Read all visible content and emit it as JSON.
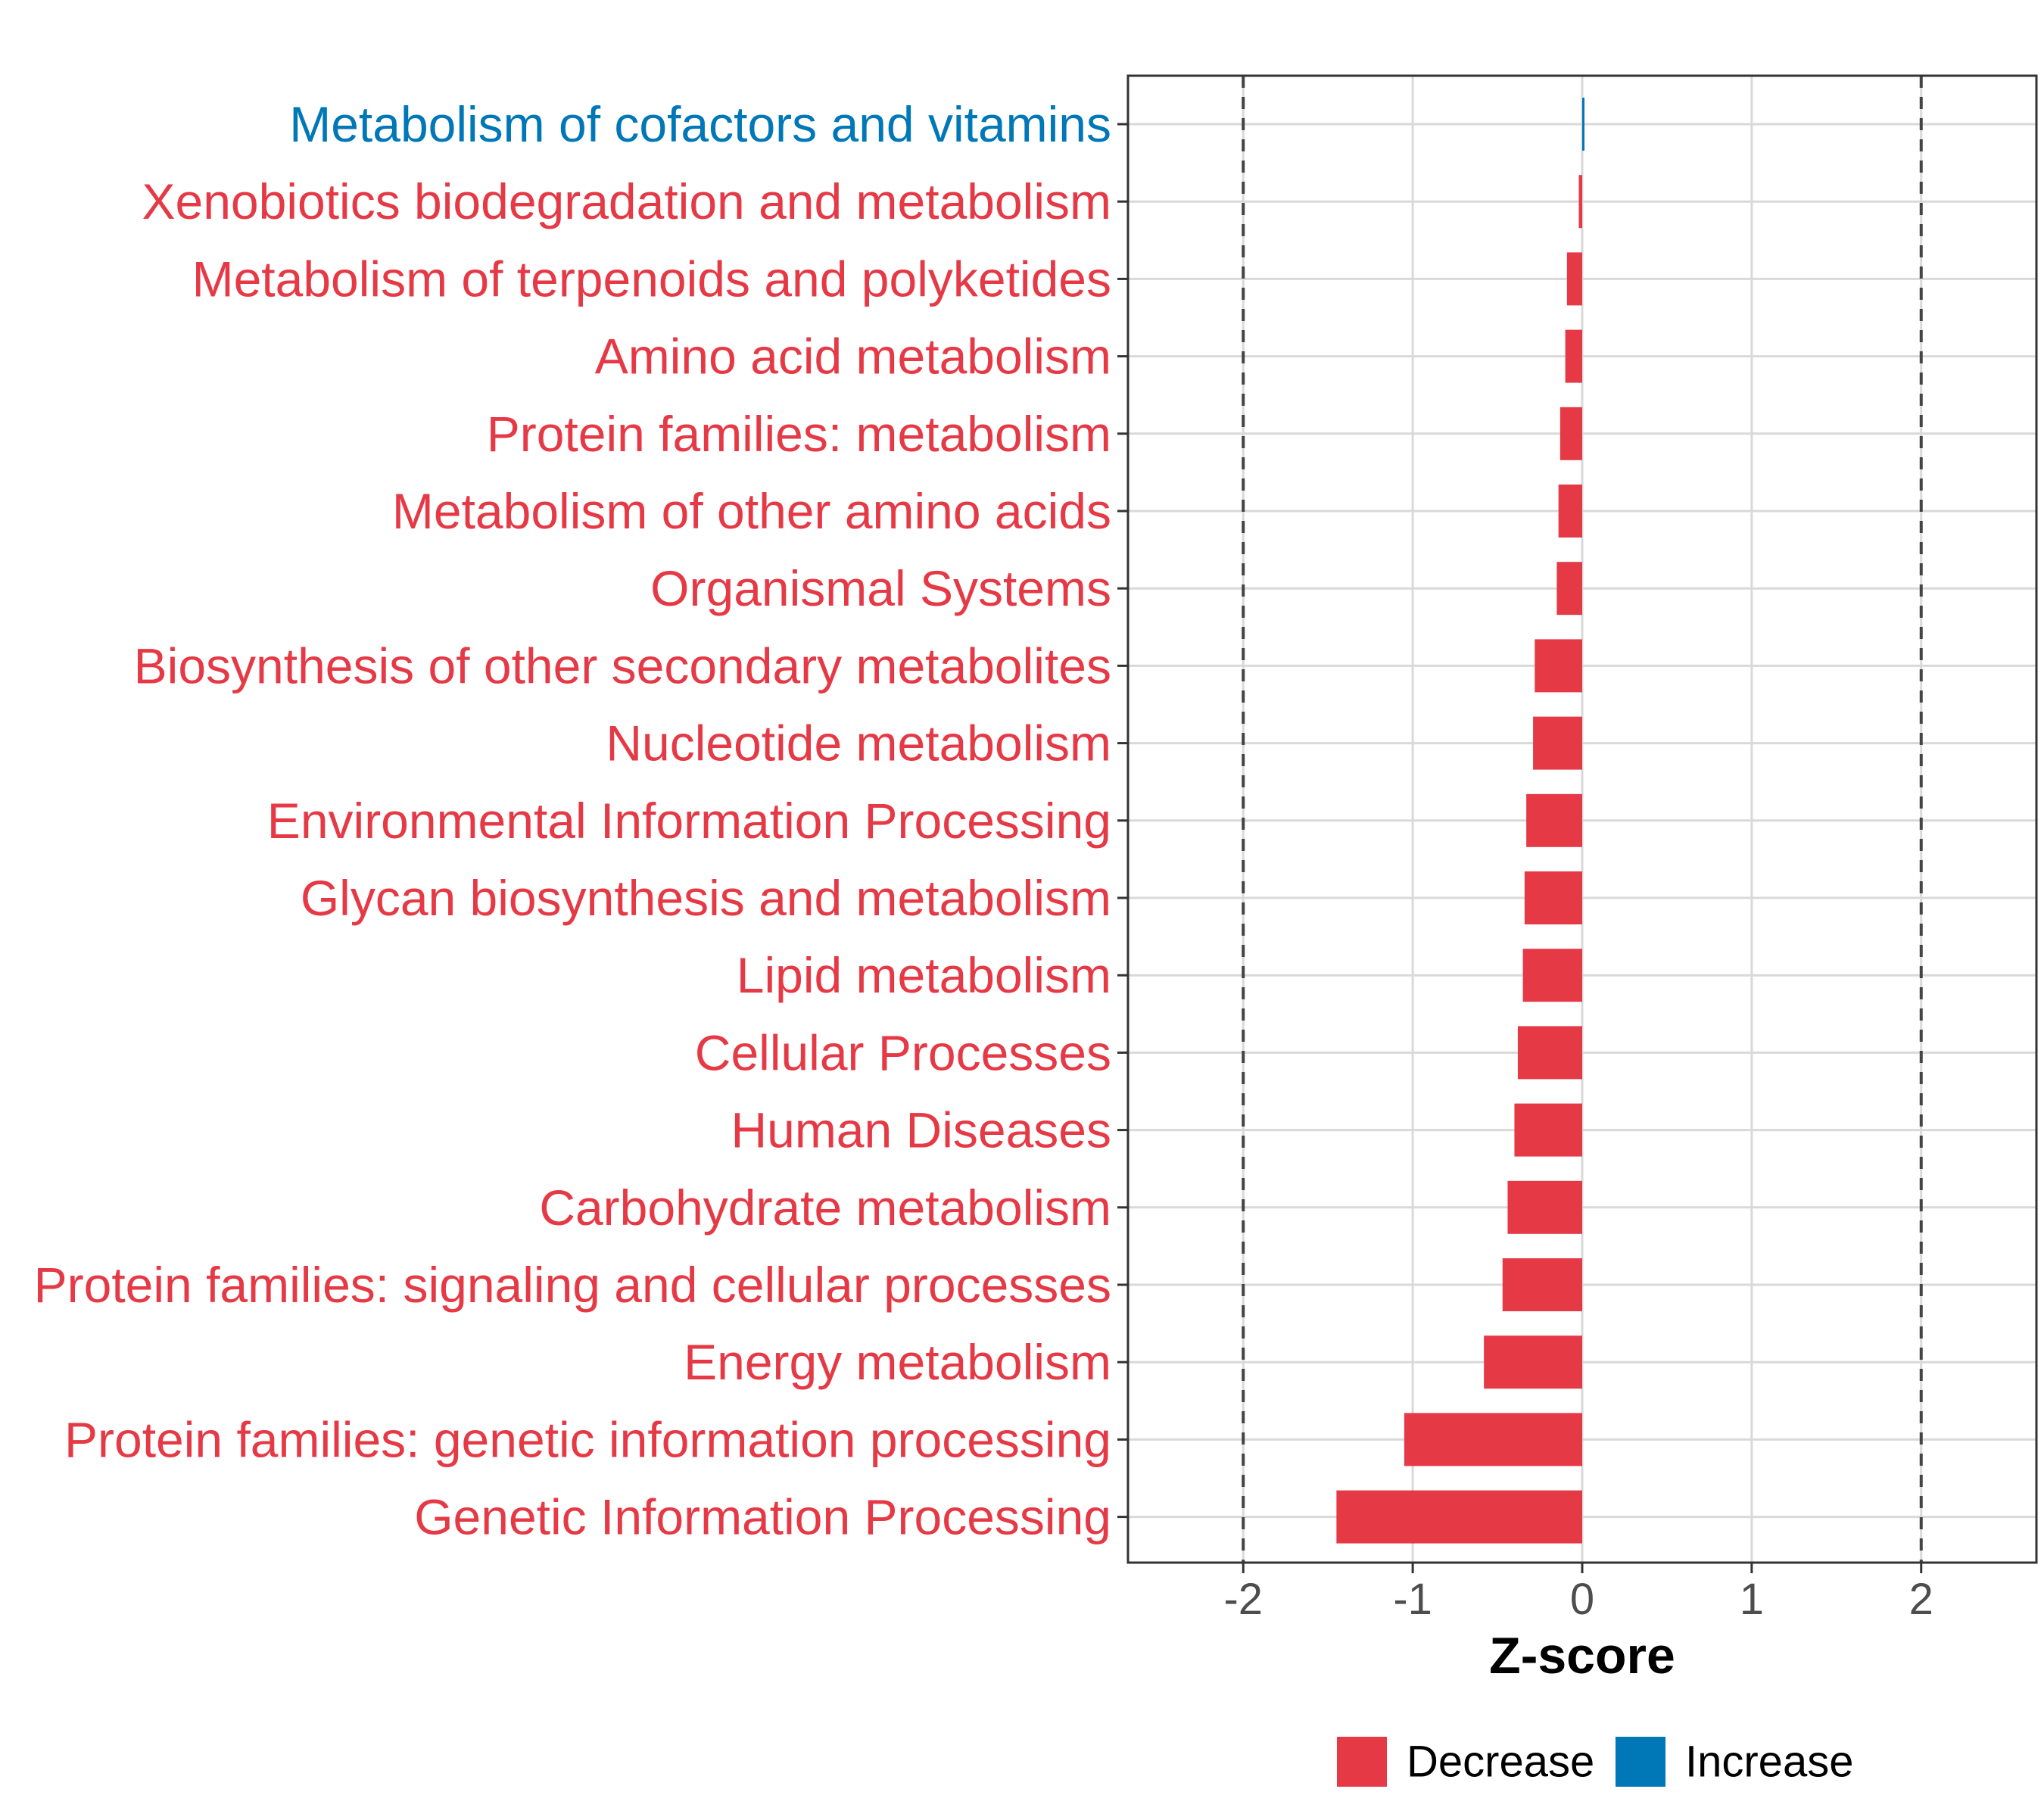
{
  "colors": {
    "decrease": "#E63946",
    "increase": "#0077B6"
  },
  "chart_data": {
    "type": "bar",
    "orientation": "horizontal",
    "categories": [
      "Metabolism of cofactors and vitamins",
      "Xenobiotics biodegradation and metabolism",
      "Metabolism of terpenoids and polyketides",
      "Amino acid metabolism",
      "Protein families: metabolism",
      "Metabolism of other amino acids",
      "Organismal Systems",
      "Biosynthesis of other secondary metabolites",
      "Nucleotide metabolism",
      "Environmental Information Processing",
      "Glycan biosynthesis and metabolism",
      "Lipid metabolism",
      "Cellular Processes",
      "Human Diseases",
      "Carbohydrate metabolism",
      "Protein families: signaling and cellular processes",
      "Energy metabolism",
      "Protein families: genetic information processing",
      "Genetic Information Processing"
    ],
    "values": [
      0.01,
      -0.02,
      -0.09,
      -0.1,
      -0.13,
      -0.14,
      -0.15,
      -0.28,
      -0.29,
      -0.33,
      -0.34,
      -0.35,
      -0.38,
      -0.4,
      -0.44,
      -0.47,
      -0.58,
      -1.05,
      -1.45
    ],
    "directions": [
      "Increase",
      "Decrease",
      "Decrease",
      "Decrease",
      "Decrease",
      "Decrease",
      "Decrease",
      "Decrease",
      "Decrease",
      "Decrease",
      "Decrease",
      "Decrease",
      "Decrease",
      "Decrease",
      "Decrease",
      "Decrease",
      "Decrease",
      "Decrease",
      "Decrease"
    ],
    "xlabel": "Z-score",
    "ylabel": "",
    "xlim": [
      -2.68,
      2.68
    ],
    "x_ticks": [
      -2,
      -1,
      0,
      1,
      2
    ],
    "x_tick_labels": [
      "-2",
      "-1",
      "0",
      "1",
      "2"
    ],
    "reference_lines": [
      -2,
      2
    ],
    "grid": true,
    "legend": {
      "position": "bottom",
      "entries": [
        {
          "label": "Decrease",
          "color": "#E63946"
        },
        {
          "label": "Increase",
          "color": "#0077B6"
        }
      ]
    }
  }
}
